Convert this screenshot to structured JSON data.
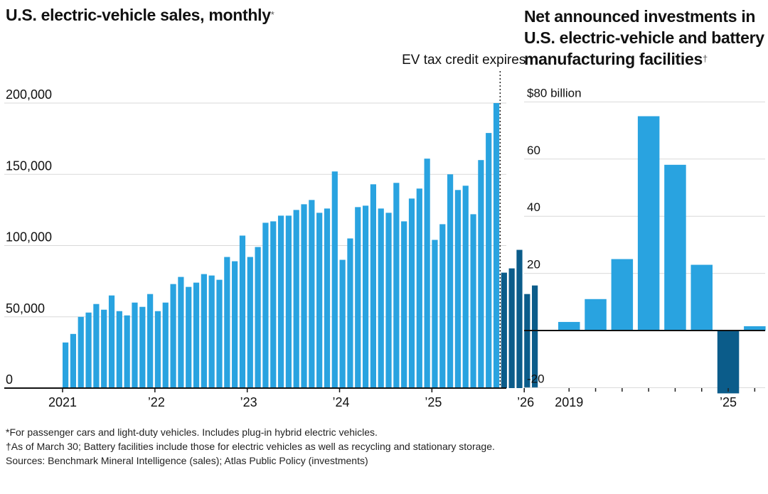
{
  "chart_data": [
    {
      "type": "bar",
      "title": "U.S. electric-vehicle sales, monthly",
      "title_marker": "*",
      "annotation": "EV tax credit expires",
      "yticks": [
        "200,000",
        "150,000",
        "100,000",
        "50,000",
        "0"
      ],
      "ytick_values": [
        200000,
        150000,
        100000,
        50000,
        0
      ],
      "ylim": [
        0,
        200000
      ],
      "xticks": [
        "2021",
        "’22",
        "’23",
        "’24",
        "’25",
        "’26"
      ],
      "categories_start": "2021-01",
      "colors": {
        "before": "#29a3e0",
        "after": "#0b5c8a"
      },
      "values": [
        32000,
        38000,
        50000,
        53000,
        59000,
        55000,
        65000,
        54000,
        51000,
        60000,
        57000,
        66000,
        54000,
        60000,
        73000,
        78000,
        71000,
        74000,
        80000,
        79000,
        76000,
        92000,
        89000,
        107000,
        92000,
        99000,
        116000,
        117000,
        121000,
        121000,
        125000,
        129000,
        132000,
        123000,
        126000,
        152000,
        90000,
        105000,
        127000,
        128000,
        143000,
        126000,
        123000,
        144000,
        117000,
        133000,
        140000,
        161000,
        104000,
        115000,
        150000,
        139000,
        142000,
        122000,
        160000,
        179000,
        200000,
        81000,
        84000,
        97000,
        66000,
        72000
      ],
      "post_credit_start_index": 57
    },
    {
      "type": "bar",
      "title": "Net announced investments in U.S. electric-vehicle and battery manufacturing facilities",
      "title_marker": "†",
      "ytick_top_label": "$80 billion",
      "yticks": [
        "60",
        "40",
        "20",
        "-20"
      ],
      "ytick_values": [
        60,
        40,
        20,
        -20
      ],
      "ylim": [
        -20,
        80
      ],
      "categories": [
        "2019",
        "2020",
        "2021",
        "2022",
        "2023",
        "2024",
        "2025",
        "2026"
      ],
      "xtick_labels": [
        "2019",
        "’25"
      ],
      "values": [
        3,
        11,
        25,
        75,
        58,
        23,
        -22,
        1.5
      ],
      "colors": {
        "positive": "#29a3e0",
        "negative": "#0b5c8a"
      }
    }
  ],
  "footnotes": [
    "*For passenger cars and light-duty vehicles. Includes plug-in hybrid electric vehicles.",
    "†As of March 30; Battery facilities include those for electric vehicles as well as recycling and stationary storage.",
    "Sources: Benchmark Mineral Intelligence (sales); Atlas Public Policy (investments)"
  ]
}
